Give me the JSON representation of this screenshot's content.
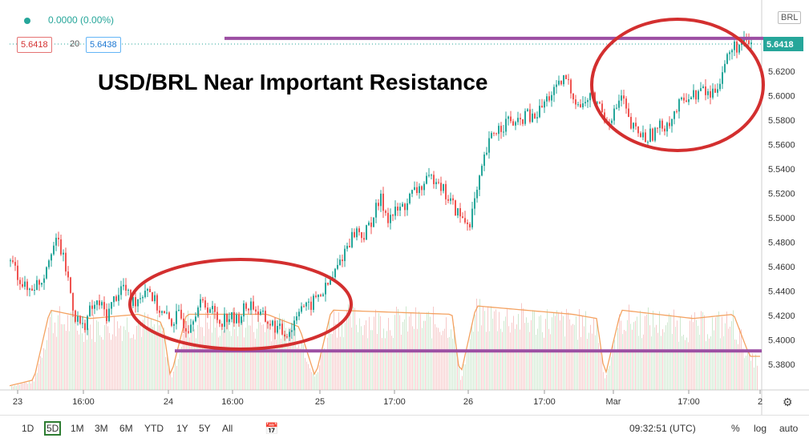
{
  "header": {
    "change_text": "0.0000 (0.00%)",
    "bid": "5.6418",
    "spread": "20",
    "ask": "5.6438",
    "currency_badge": "BRL"
  },
  "bottombar": {
    "ranges": [
      "1D",
      "5D",
      "1M",
      "3M",
      "6M",
      "YTD",
      "1Y",
      "5Y",
      "All"
    ],
    "selected_range": "5D",
    "time": "09:32:51 (UTC)",
    "opt_percent": "%",
    "opt_log": "log",
    "opt_auto": "auto"
  },
  "chart_data": {
    "type": "candlestick",
    "title": "USD/BRL Near Important Resistance",
    "last_price": "5.6418",
    "y_ticks": [
      "5.6200",
      "5.6000",
      "5.5800",
      "5.5600",
      "5.5400",
      "5.5200",
      "5.5000",
      "5.4800",
      "5.4600",
      "5.4400",
      "5.4200",
      "5.4000",
      "5.3800"
    ],
    "y_range": [
      5.372,
      5.667
    ],
    "x_ticks": [
      "23",
      "16:00",
      "24",
      "16:00",
      "25",
      "17:00",
      "26",
      "17:00",
      "Mar",
      "17:00",
      "2"
    ],
    "resistance_level": 5.647,
    "support_level": 5.391,
    "price_path": [
      [
        0,
        5.465
      ],
      [
        2,
        5.44
      ],
      [
        4,
        5.45
      ],
      [
        5,
        5.475
      ],
      [
        6,
        5.48
      ],
      [
        7,
        5.455
      ],
      [
        8,
        5.42
      ],
      [
        9,
        5.41
      ],
      [
        10,
        5.425
      ],
      [
        11,
        5.43
      ],
      [
        12,
        5.42
      ],
      [
        13,
        5.435
      ],
      [
        14,
        5.445
      ],
      [
        15,
        5.43
      ],
      [
        16,
        5.435
      ],
      [
        17,
        5.445
      ],
      [
        18,
        5.43
      ],
      [
        19,
        5.42
      ],
      [
        20,
        5.415
      ],
      [
        21,
        5.42
      ],
      [
        22,
        5.41
      ],
      [
        23,
        5.425
      ],
      [
        24,
        5.43
      ],
      [
        25,
        5.425
      ],
      [
        26,
        5.415
      ],
      [
        27,
        5.42
      ],
      [
        28,
        5.415
      ],
      [
        29,
        5.425
      ],
      [
        30,
        5.43
      ],
      [
        31,
        5.42
      ],
      [
        32,
        5.415
      ],
      [
        33,
        5.41
      ],
      [
        34,
        5.405
      ],
      [
        35,
        5.41
      ],
      [
        36,
        5.43
      ],
      [
        37,
        5.425
      ],
      [
        38,
        5.435
      ],
      [
        39,
        5.44
      ],
      [
        40,
        5.45
      ],
      [
        41,
        5.465
      ],
      [
        42,
        5.48
      ],
      [
        43,
        5.49
      ],
      [
        44,
        5.485
      ],
      [
        45,
        5.5
      ],
      [
        46,
        5.515
      ],
      [
        47,
        5.5
      ],
      [
        48,
        5.505
      ],
      [
        49,
        5.51
      ],
      [
        50,
        5.52
      ],
      [
        51,
        5.525
      ],
      [
        52,
        5.53
      ],
      [
        53,
        5.535
      ],
      [
        54,
        5.52
      ],
      [
        55,
        5.51
      ],
      [
        56,
        5.5
      ],
      [
        57,
        5.495
      ],
      [
        58,
        5.52
      ],
      [
        59,
        5.55
      ],
      [
        60,
        5.57
      ],
      [
        61,
        5.575
      ],
      [
        62,
        5.58
      ],
      [
        63,
        5.575
      ],
      [
        64,
        5.585
      ],
      [
        65,
        5.58
      ],
      [
        66,
        5.59
      ],
      [
        67,
        5.6
      ],
      [
        68,
        5.605
      ],
      [
        69,
        5.615
      ],
      [
        70,
        5.6
      ],
      [
        71,
        5.59
      ],
      [
        72,
        5.6
      ],
      [
        73,
        5.595
      ],
      [
        74,
        5.58
      ],
      [
        75,
        5.585
      ],
      [
        76,
        5.6
      ],
      [
        77,
        5.575
      ],
      [
        78,
        5.57
      ],
      [
        79,
        5.565
      ],
      [
        80,
        5.57
      ],
      [
        81,
        5.575
      ],
      [
        82,
        5.58
      ],
      [
        83,
        5.59
      ],
      [
        84,
        5.6
      ],
      [
        85,
        5.6
      ],
      [
        86,
        5.605
      ],
      [
        87,
        5.6
      ],
      [
        88,
        5.61
      ],
      [
        89,
        5.63
      ],
      [
        90,
        5.64
      ],
      [
        91,
        5.642
      ]
    ],
    "volume_profile": [
      {
        "x": 0,
        "h": 0.05
      },
      {
        "x": 3,
        "h": 0.12
      },
      {
        "x": 5,
        "h": 0.95
      },
      {
        "x": 10,
        "h": 0.85
      },
      {
        "x": 16,
        "h": 0.9
      },
      {
        "x": 19,
        "h": 0.8
      },
      {
        "x": 20,
        "h": 0.15
      },
      {
        "x": 22,
        "h": 0.9
      },
      {
        "x": 32,
        "h": 0.9
      },
      {
        "x": 36,
        "h": 0.75
      },
      {
        "x": 38,
        "h": 0.15
      },
      {
        "x": 40,
        "h": 0.95
      },
      {
        "x": 55,
        "h": 0.9
      },
      {
        "x": 56,
        "h": 0.15
      },
      {
        "x": 58,
        "h": 1.0
      },
      {
        "x": 70,
        "h": 0.9
      },
      {
        "x": 73,
        "h": 0.85
      },
      {
        "x": 74,
        "h": 0.15
      },
      {
        "x": 76,
        "h": 0.95
      },
      {
        "x": 85,
        "h": 0.85
      },
      {
        "x": 90,
        "h": 0.9
      },
      {
        "x": 92,
        "h": 0.4
      }
    ]
  }
}
